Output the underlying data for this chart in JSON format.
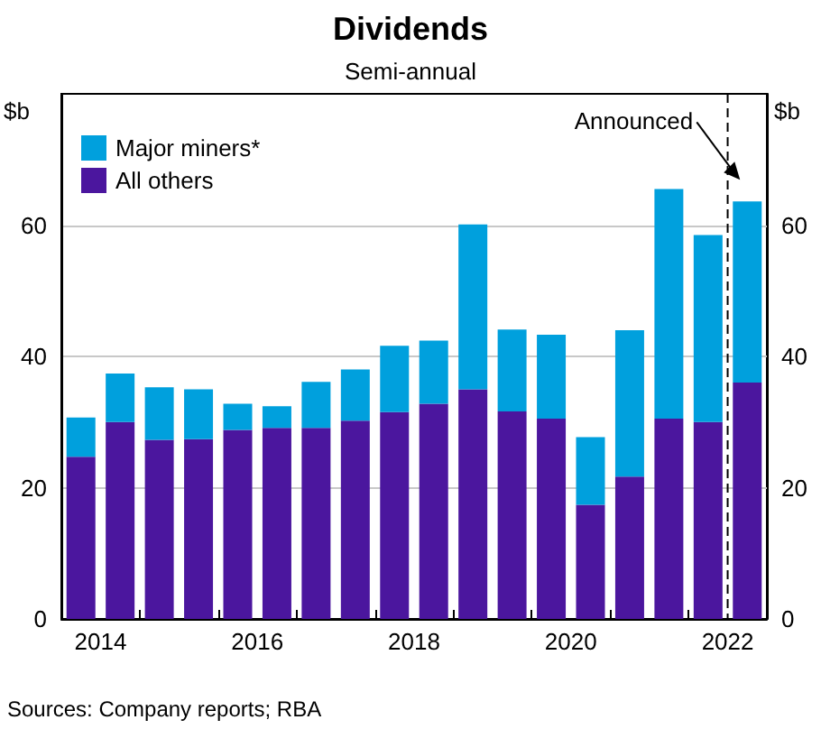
{
  "chart_data": {
    "type": "bar",
    "title": "Dividends",
    "subtitle": "Semi-annual",
    "ylabel": "$b",
    "y2label": "$b",
    "x": [
      2014.25,
      2014.75,
      2015.25,
      2015.75,
      2016.25,
      2016.75,
      2017.25,
      2017.75,
      2018.25,
      2018.75,
      2019.25,
      2019.75,
      2020.25,
      2020.75,
      2021.25,
      2021.75,
      2022.25,
      2022.75
    ],
    "stacked": true,
    "series": [
      {
        "name": "All others",
        "color": "#4b169e",
        "values": [
          24.7,
          30.0,
          27.3,
          27.4,
          28.8,
          29.1,
          29.1,
          30.2,
          31.5,
          32.8,
          35.0,
          31.6,
          30.5,
          17.4,
          21.7,
          30.5,
          30.0,
          36.0
        ]
      },
      {
        "name": "Major miners*",
        "color": "#00a0dd",
        "values": [
          6.0,
          7.4,
          8.0,
          7.6,
          4.0,
          3.3,
          7.0,
          7.8,
          10.1,
          9.6,
          25.1,
          12.5,
          12.8,
          10.3,
          22.3,
          35.0,
          28.5,
          27.6
        ]
      }
    ],
    "xlim": [
      2014,
      2023
    ],
    "xticks": [
      {
        "value": 2014.5,
        "label": "2014"
      },
      {
        "value": 2016.5,
        "label": "2016"
      },
      {
        "value": 2018.5,
        "label": "2018"
      },
      {
        "value": 2020.5,
        "label": "2020"
      },
      {
        "value": 2022.5,
        "label": "2022"
      },
      {
        "value": 2015,
        "label": null
      },
      {
        "value": 2016,
        "label": null
      },
      {
        "value": 2017,
        "label": null
      },
      {
        "value": 2018,
        "label": null
      },
      {
        "value": 2019,
        "label": null
      },
      {
        "value": 2020,
        "label": null
      },
      {
        "value": 2021,
        "label": null
      },
      {
        "value": 2022,
        "label": null
      }
    ],
    "ylim": [
      0,
      80
    ],
    "yticks": [
      0,
      20,
      40,
      60
    ],
    "y2lim": [
      0,
      80
    ],
    "y2ticks": [
      0,
      20,
      40,
      60
    ],
    "grid": "y",
    "legend": "top left",
    "ref_lines": [
      {
        "axis": "x",
        "value": 2022.5,
        "label": null,
        "color": "#000000",
        "line_style": "dashed"
      }
    ],
    "annotations": [
      "Announced",
      "Sources: Company reports; RBA"
    ]
  }
}
